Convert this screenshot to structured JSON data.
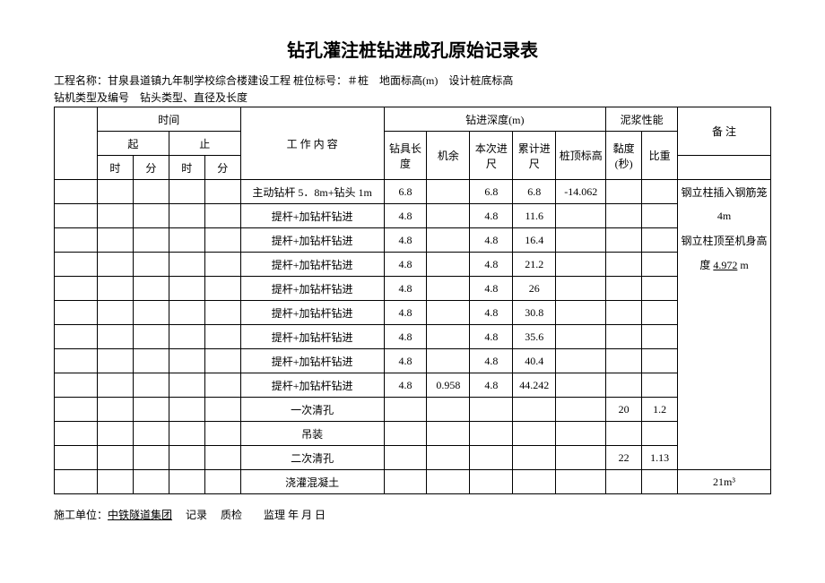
{
  "title": "钻孔灌注桩钻进成孔原始记录表",
  "meta_line1": "工程名称：甘泉县道镇九年制学校综合楼建设工程 桩位标号：＃桩　地面标高(m)　设计桩底标高",
  "meta_line2": "钻机类型及编号　钻头类型、直径及长度",
  "headers": {
    "time": "时间",
    "start": "起",
    "end": "止",
    "hour": "时",
    "minute": "分",
    "work_content": "工 作 内 容",
    "depth": "钻进深度(m)",
    "tool_length": "钻具长度",
    "remain": "机余",
    "this_advance": "本次进尺",
    "cum_advance": "累计进尺",
    "top_elev": "桩顶标高",
    "mud": "泥浆性能",
    "viscosity": "黏度(秒)",
    "specific_gravity": "比重",
    "remark": "备 注"
  },
  "rows": [
    {
      "content": "主动钻杆 5．8m+钻头 1m",
      "tool": "6.8",
      "remain": "",
      "this": "6.8",
      "cum": "6.8",
      "top": "-14.062",
      "visc": "",
      "sg": "",
      "remark": "钢立柱插入钢筋笼"
    },
    {
      "content": "提杆+加钻杆钻进",
      "tool": "4.8",
      "remain": "",
      "this": "4.8",
      "cum": "11.6",
      "top": "",
      "visc": "",
      "sg": "",
      "remark": "4m"
    },
    {
      "content": "提杆+加钻杆钻进",
      "tool": "4.8",
      "remain": "",
      "this": "4.8",
      "cum": "16.4",
      "top": "",
      "visc": "",
      "sg": "",
      "remark": "钢立柱顶至机身高"
    },
    {
      "content": "提杆+加钻杆钻进",
      "tool": "4.8",
      "remain": "",
      "this": "4.8",
      "cum": "21.2",
      "top": "",
      "visc": "",
      "sg": "",
      "remark": "度 4.972 m",
      "remark_underline": "4.972"
    },
    {
      "content": "提杆+加钻杆钻进",
      "tool": "4.8",
      "remain": "",
      "this": "4.8",
      "cum": "26",
      "top": "",
      "visc": "",
      "sg": "",
      "remark": ""
    },
    {
      "content": "提杆+加钻杆钻进",
      "tool": "4.8",
      "remain": "",
      "this": "4.8",
      "cum": "30.8",
      "top": "",
      "visc": "",
      "sg": "",
      "remark": ""
    },
    {
      "content": "提杆+加钻杆钻进",
      "tool": "4.8",
      "remain": "",
      "this": "4.8",
      "cum": "35.6",
      "top": "",
      "visc": "",
      "sg": "",
      "remark": ""
    },
    {
      "content": "提杆+加钻杆钻进",
      "tool": "4.8",
      "remain": "",
      "this": "4.8",
      "cum": "40.4",
      "top": "",
      "visc": "",
      "sg": "",
      "remark": ""
    },
    {
      "content": "提杆+加钻杆钻进",
      "tool": "4.8",
      "remain": "0.958",
      "this": "4.8",
      "cum": "44.242",
      "top": "",
      "visc": "",
      "sg": "",
      "remark": ""
    },
    {
      "content": "一次清孔",
      "tool": "",
      "remain": "",
      "this": "",
      "cum": "",
      "top": "",
      "visc": "20",
      "sg": "1.2",
      "remark": ""
    },
    {
      "content": "吊装",
      "tool": "",
      "remain": "",
      "this": "",
      "cum": "",
      "top": "",
      "visc": "",
      "sg": "",
      "remark": ""
    },
    {
      "content": "二次清孔",
      "tool": "",
      "remain": "",
      "this": "",
      "cum": "",
      "top": "",
      "visc": "22",
      "sg": "1.13",
      "remark": ""
    },
    {
      "content": "浇灌混凝土",
      "tool": "",
      "remain": "",
      "this": "",
      "cum": "",
      "top": "",
      "visc": "",
      "sg": "",
      "remark": "21m³"
    }
  ],
  "footer": {
    "prefix": "施工单位：",
    "unit": "中铁隧道集团",
    "rest": "　 记录　 质检　　监理  年 月  日"
  },
  "colwidths_pct": [
    6,
    5,
    5,
    5,
    5,
    20,
    6,
    6,
    6,
    6,
    7,
    5,
    5,
    13
  ]
}
